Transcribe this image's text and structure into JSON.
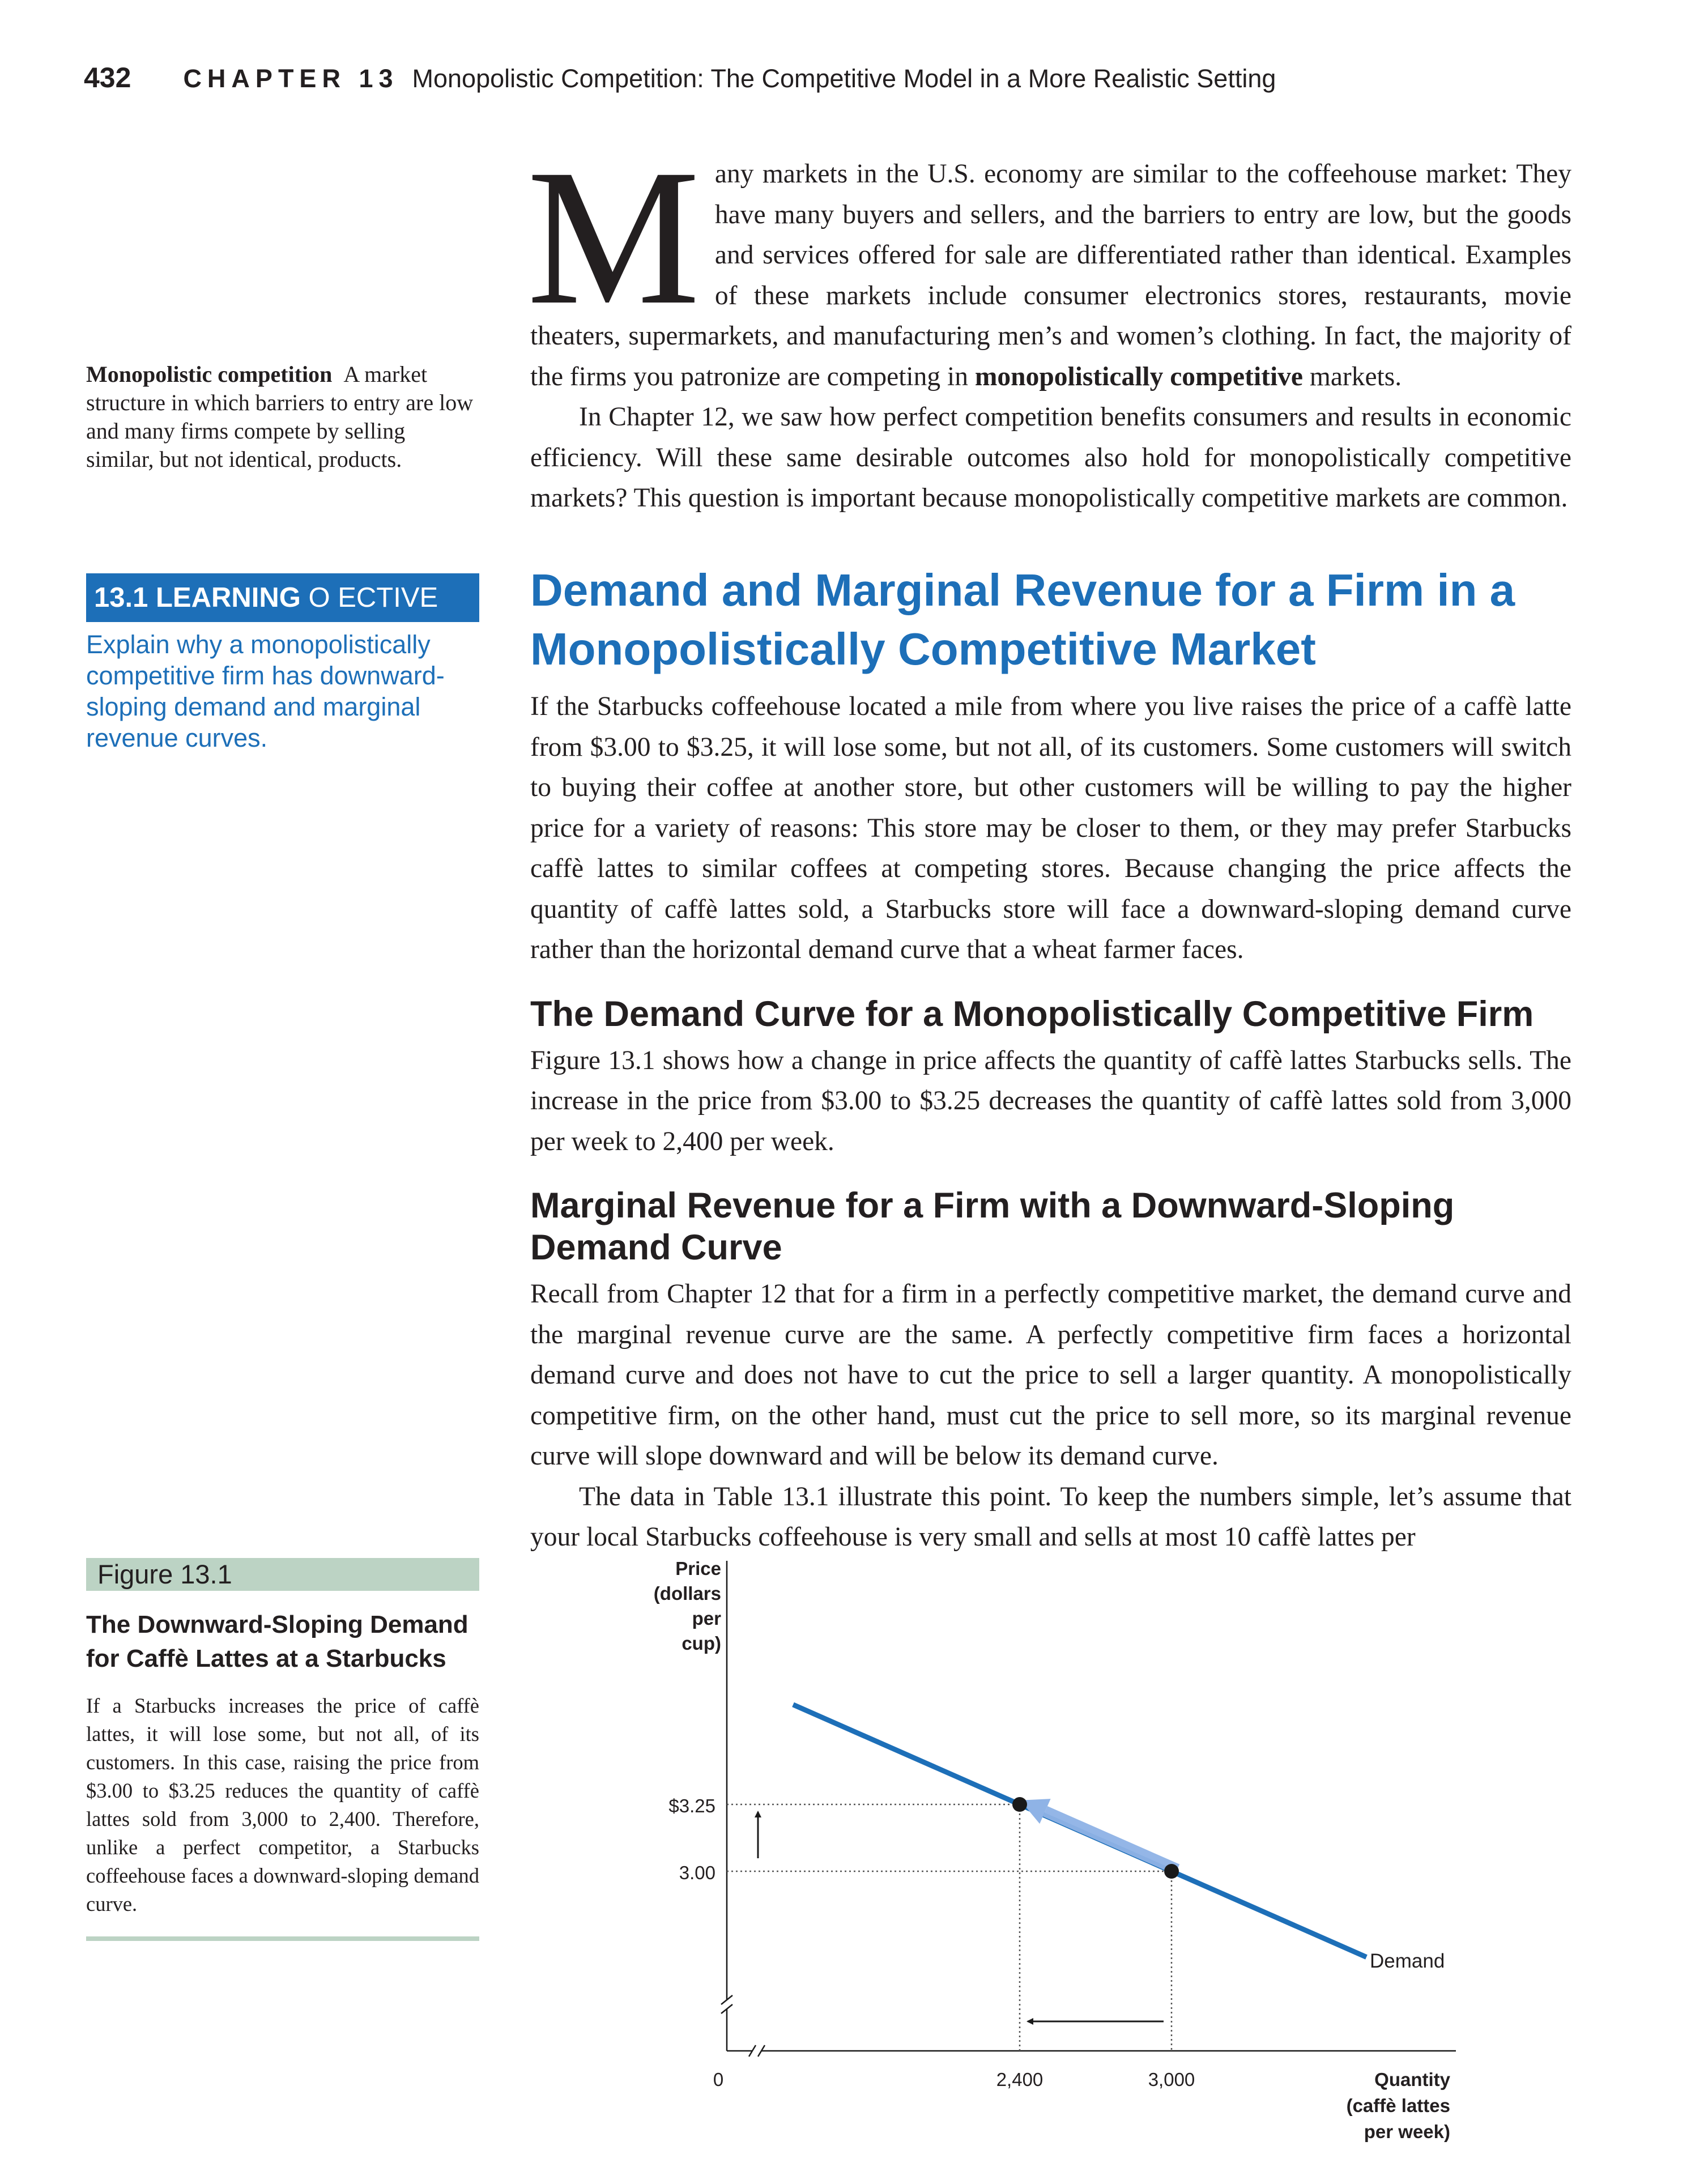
{
  "header": {
    "page_number": "432",
    "chapter_label": "CHAPTER 13",
    "chapter_title": "Monopolistic Competition: The Competitive Model in a More Realistic Setting"
  },
  "intro": {
    "dropcap": "M",
    "p1_start": "any markets in the U.S. economy are similar to the coffeehouse market: They have many buyers and sellers, and the barriers to entry are low, but the goods and services offered for sale are differentiated rather than identical. Examples of these markets include consumer electronics stores, restaurants, movie theaters, supermarkets, and manufacturing men’s and women’s clothing. In fact, the majority of the firms you patronize are competing in ",
    "p1_bold": "monopolistically competitive",
    "p1_end": " markets.",
    "p2": "In Chapter 12, we saw how perfect competition benefits consumers and results in economic efficiency. Will these same desirable outcomes also hold for monopolistically competitive markets? This question is important because monopolistically competitive markets are common."
  },
  "margin_definition": {
    "term": "Monopolistic competition",
    "definition": "A market structure in which barriers to entry are low and many firms compete by selling similar, but not identical, products."
  },
  "learning_objective": {
    "number_label": "13.1 LEARNING",
    "rest_label": "O ECTIVE",
    "text": "Explain why a monopolistically competitive firm has downward-sloping demand and marginal revenue curves."
  },
  "section": {
    "heading": "Demand and Marginal Revenue for a Firm in a Monopolistically Competitive Market",
    "p1": "If the Starbucks coffeehouse located a mile from where you live raises the price of a caffè latte from $3.00 to $3.25, it will lose some, but not all, of its customers. Some customers will switch to buying their coffee at another store, but other customers will be willing to pay the higher price for a variety of reasons: This store may be closer to them, or they may prefer Starbucks caffè lattes to similar coffees at competing stores. Because changing the price affects the quantity of caffè lattes sold, a Starbucks store will face a downward-sloping demand curve rather than the horizontal demand curve that a wheat farmer faces."
  },
  "subsection1": {
    "heading": "The Demand Curve for a Monopolistically Competitive Firm",
    "p1": "Figure 13.1 shows how a change in price affects the quantity of caffè lattes Starbucks sells. The increase in the price from $3.00 to $3.25 decreases the quantity of caffè lattes sold from 3,000 per week to 2,400 per week."
  },
  "subsection2": {
    "heading": "Marginal Revenue for a Firm with a Downward-Sloping Demand Curve",
    "p1": "Recall from Chapter 12 that for a firm in a perfectly competitive market, the demand curve and the marginal revenue curve are the same. A perfectly competitive firm faces a horizontal demand curve and does not have to cut the price to sell a larger quantity. A monopolistically competitive firm, on the other hand, must cut the price to sell more, so its marginal revenue curve will slope downward and will be below its demand curve.",
    "p2": "The data in Table 13.1 illustrate this point. To keep the numbers simple, let’s assume that your local Starbucks coffeehouse is very small and sells at most 10 caffè lattes per"
  },
  "figure": {
    "label": "Figure 13.1",
    "title": "The Downward-Sloping Demand for Caffè Lattes at a Starbucks",
    "caption": "If a Starbucks increases the price of caffè lattes, it will lose some, but not all, of its customers. In this case, raising the price from $3.00 to $3.25 reduces the quantity of caffè lattes sold from 3,000 to 2,400. Therefore, unlike a perfect competitor, a Starbucks coffeehouse faces a downward-sloping demand curve."
  },
  "chart_data": {
    "type": "line",
    "ylabel": "Price (dollars per cup)",
    "xlabel": "Quantity (caffè lattes per week)",
    "y_axis_label_lines": [
      "Price",
      "(dollars",
      "per",
      "cup)"
    ],
    "x_axis_label_lines": [
      "Quantity",
      "(caffè lattes",
      "per week)"
    ],
    "x_tick_labels": [
      "0",
      "2,400",
      "3,000"
    ],
    "y_tick_labels": [
      "$3.25",
      "3.00"
    ],
    "series": [
      {
        "name": "Demand",
        "points": [
          {
            "x": 2400,
            "y": 3.25
          },
          {
            "x": 3000,
            "y": 3.0
          }
        ]
      }
    ],
    "axis_breaks": true,
    "colors": {
      "demand_curve": "#1d6fb8",
      "movement_arrow": "#8fb3e6",
      "points": "#1a1a1a"
    }
  }
}
